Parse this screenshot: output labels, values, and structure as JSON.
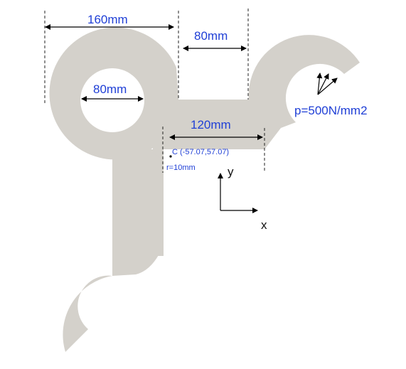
{
  "colors": {
    "part_fill": "#d4d1cb",
    "label_blue": "#1f3fd6",
    "line_black": "#000000"
  },
  "labels": {
    "dim_outer_diameter": "160mm",
    "dim_gap_width": "80mm",
    "dim_hole_diameter": "80mm",
    "dim_arm_length": "120mm",
    "pressure": "p=500N/mm2",
    "point_c": "C (-57.07,57.07)",
    "radius": "r=10mm",
    "axis_x": "x",
    "axis_y": "y"
  }
}
